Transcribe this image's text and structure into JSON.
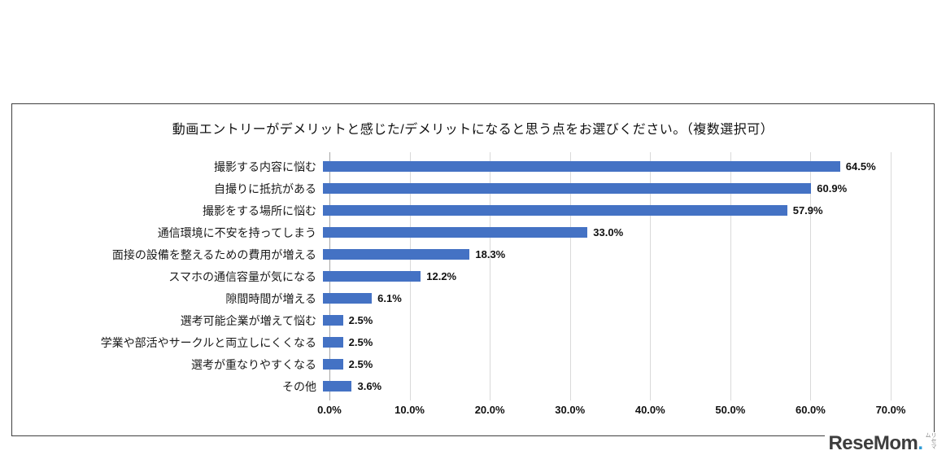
{
  "chart_data": {
    "type": "bar",
    "orientation": "horizontal",
    "title": "動画エントリーがデメリットと感じた/デメリットになると思う点をお選びください。（複数選択可）",
    "categories": [
      "撮影する内容に悩む",
      "自撮りに抵抗がある",
      "撮影をする場所に悩む",
      "通信環境に不安を持ってしまう",
      "面接の設備を整えるための費用が増える",
      "スマホの通信容量が気になる",
      "隙間時間が増える",
      "選考可能企業が増えて悩む",
      "学業や部活やサークルと両立しにくくなる",
      "選考が重なりやすくなる",
      "その他"
    ],
    "values": [
      64.5,
      60.9,
      57.9,
      33.0,
      18.3,
      12.2,
      6.1,
      2.5,
      2.5,
      2.5,
      3.6
    ],
    "value_labels": [
      "64.5%",
      "60.9%",
      "57.9%",
      "33.0%",
      "18.3%",
      "12.2%",
      "6.1%",
      "2.5%",
      "2.5%",
      "2.5%",
      "3.6%"
    ],
    "x_ticks": [
      "0.0%",
      "10.0%",
      "20.0%",
      "30.0%",
      "40.0%",
      "50.0%",
      "60.0%",
      "70.0%"
    ],
    "xlim": [
      0,
      70
    ],
    "grid": true,
    "legend": "none",
    "bar_color": "#4472c4",
    "gridline_color": "#d9d9d9"
  },
  "watermark": {
    "text": "ReseMom",
    "dot": ".",
    "sub": "リセマム"
  }
}
